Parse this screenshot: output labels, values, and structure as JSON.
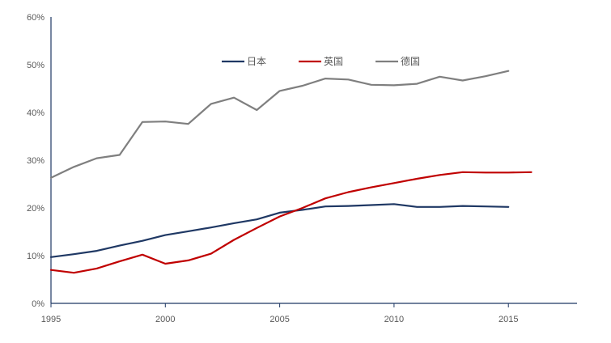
{
  "chart_data": {
    "type": "line",
    "title": "",
    "xlabel": "",
    "ylabel": "",
    "xlim": [
      1995,
      2018
    ],
    "ylim": [
      0,
      60
    ],
    "x_ticks": [
      1995,
      2000,
      2005,
      2010,
      2015
    ],
    "x_tick_labels": [
      "1995",
      "2000",
      "2005",
      "2010",
      "2015"
    ],
    "y_ticks": [
      0,
      10,
      20,
      30,
      40,
      50,
      60
    ],
    "y_tick_labels": [
      "0%",
      "10%",
      "20%",
      "30%",
      "40%",
      "50%",
      "60%"
    ],
    "y_unit": "%",
    "grid": false,
    "legend_position": "top-center",
    "series": [
      {
        "name": "日本",
        "color": "#1f3864",
        "x": [
          1995,
          1996,
          1997,
          1998,
          1999,
          2000,
          2001,
          2002,
          2003,
          2004,
          2005,
          2006,
          2007,
          2008,
          2009,
          2010,
          2011,
          2012,
          2013,
          2014,
          2015
        ],
        "values": [
          9.7,
          10.3,
          11.0,
          12.1,
          13.1,
          14.3,
          15.1,
          15.9,
          16.8,
          17.6,
          19.0,
          19.6,
          20.3,
          20.4,
          20.6,
          20.8,
          20.2,
          20.2,
          20.4,
          20.3,
          20.2
        ]
      },
      {
        "name": "英国",
        "color": "#c00000",
        "x": [
          1995,
          1996,
          1997,
          1998,
          1999,
          2000,
          2001,
          2002,
          2003,
          2004,
          2005,
          2006,
          2007,
          2008,
          2009,
          2010,
          2011,
          2012,
          2013,
          2014,
          2015,
          2016
        ],
        "values": [
          7.0,
          6.4,
          7.3,
          8.8,
          10.2,
          8.3,
          9.0,
          10.4,
          13.3,
          15.8,
          18.2,
          20.0,
          22.0,
          23.3,
          24.3,
          25.2,
          26.1,
          26.9,
          27.5,
          27.4,
          27.4,
          27.5
        ]
      },
      {
        "name": "德国",
        "color": "#7f7f7f",
        "x": [
          1995,
          1996,
          1997,
          1998,
          1999,
          2000,
          2001,
          2002,
          2003,
          2004,
          2005,
          2006,
          2007,
          2008,
          2009,
          2010,
          2011,
          2012,
          2013,
          2014,
          2015
        ],
        "values": [
          26.3,
          28.6,
          30.4,
          31.1,
          38.0,
          38.1,
          37.6,
          41.8,
          43.1,
          40.5,
          44.5,
          45.6,
          47.1,
          46.9,
          45.8,
          45.7,
          46.0,
          47.5,
          46.7,
          47.6,
          48.7
        ]
      }
    ]
  }
}
